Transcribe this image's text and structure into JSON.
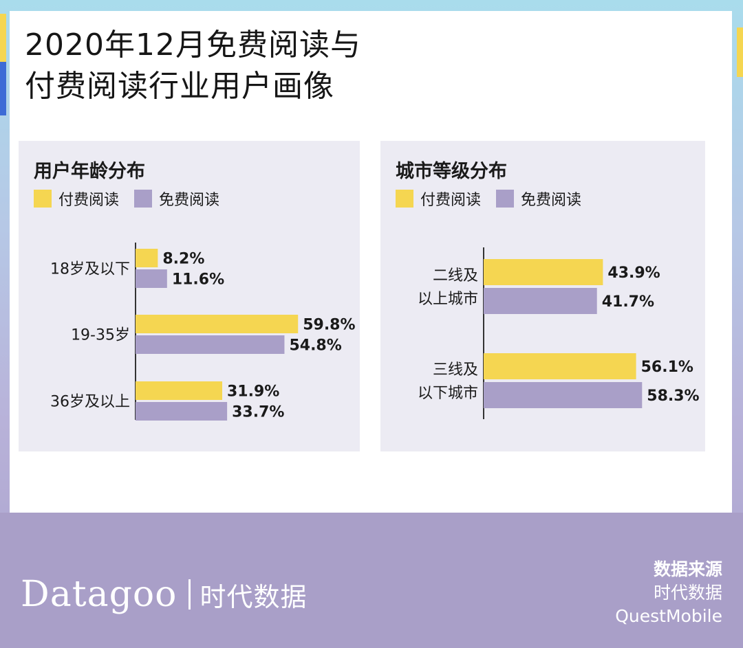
{
  "title": {
    "line1": "2020年12月免费阅读与",
    "line2": "付费阅读行业用户画像"
  },
  "colors": {
    "paid": "#f5d651",
    "free": "#a99fc8",
    "panel": "#ecebf3",
    "accent_yellow": "#f5d651",
    "accent_blue": "#3d6bd6"
  },
  "legend": {
    "paid": "付费阅读",
    "free": "免费阅读"
  },
  "chart_data": [
    {
      "type": "bar",
      "orientation": "horizontal",
      "title": "用户年龄分布",
      "categories": [
        "18岁及以下",
        "19-35岁",
        "36岁及以上"
      ],
      "series": [
        {
          "name": "付费阅读",
          "values": [
            8.2,
            59.8,
            31.9
          ]
        },
        {
          "name": "免费阅读",
          "values": [
            11.6,
            54.8,
            33.7
          ]
        }
      ],
      "value_suffix": "%",
      "xlim": [
        0,
        65
      ]
    },
    {
      "type": "bar",
      "orientation": "horizontal",
      "title": "城市等级分布",
      "categories": [
        [
          "二线及",
          "以上城市"
        ],
        [
          "三线及",
          "以下城市"
        ]
      ],
      "series": [
        {
          "name": "付费阅读",
          "values": [
            43.9,
            56.1
          ]
        },
        {
          "name": "免费阅读",
          "values": [
            41.7,
            58.3
          ]
        }
      ],
      "value_suffix": "%",
      "xlim": [
        0,
        65
      ]
    }
  ],
  "footer": {
    "brand": "Datagoo",
    "brand_cn": "时代数据",
    "source_label": "数据来源",
    "sources": [
      "时代数据",
      "QuestMobile"
    ]
  }
}
